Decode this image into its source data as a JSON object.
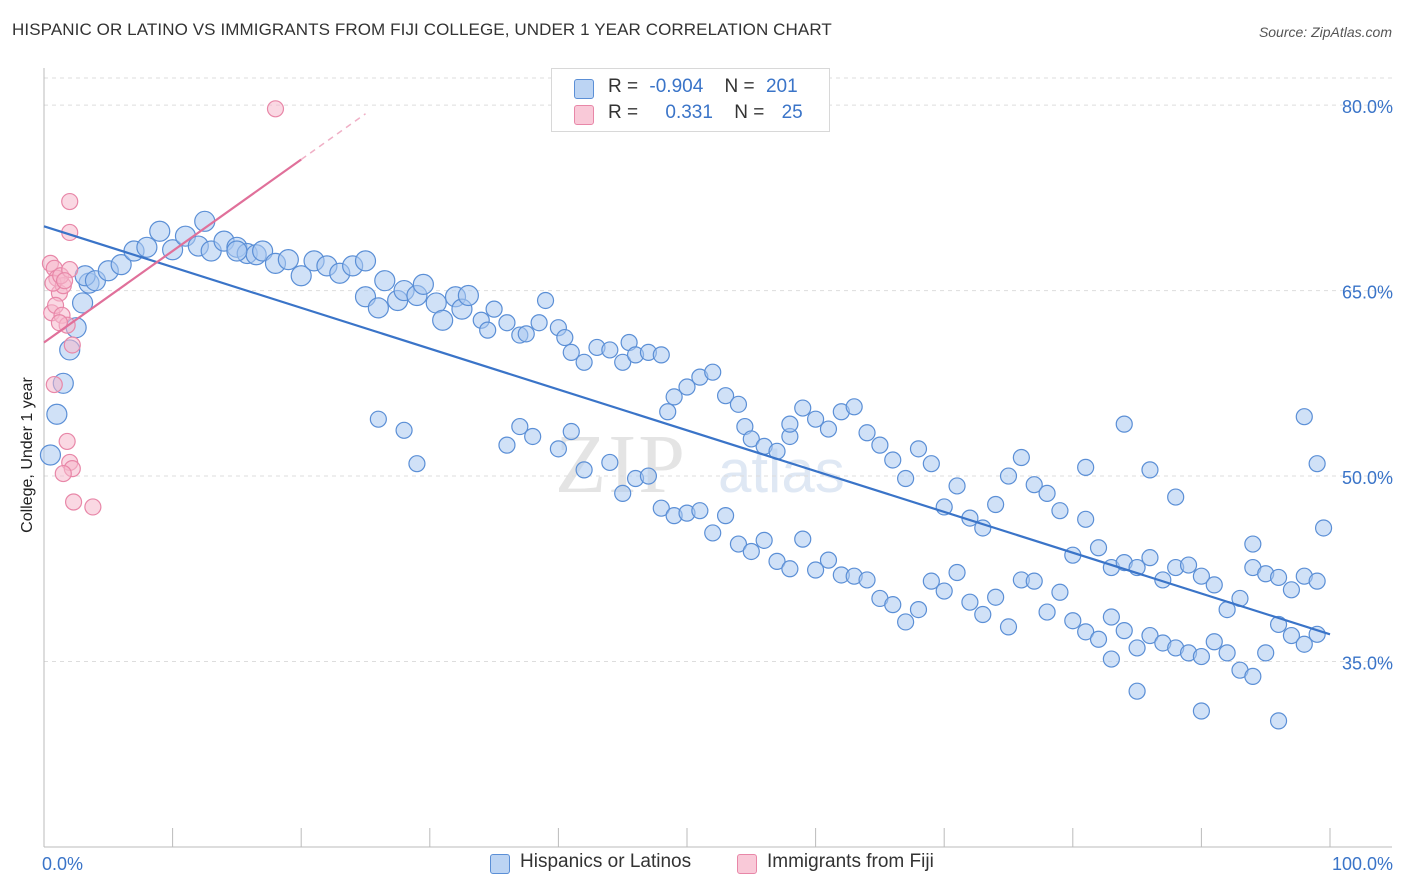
{
  "header": {
    "title": "HISPANIC OR LATINO VS IMMIGRANTS FROM FIJI COLLEGE, UNDER 1 YEAR CORRELATION CHART",
    "source": "Source: ZipAtlas.com"
  },
  "legend": {
    "row1": {
      "r_label": "R =",
      "r_value": "-0.904",
      "n_label": "N =",
      "n_value": "201"
    },
    "row2": {
      "r_label": "R =",
      "r_value": "0.331",
      "n_label": "N =",
      "n_value": "25"
    }
  },
  "watermark": {
    "part1": "ZIP",
    "part2": "atlas"
  },
  "colors": {
    "blue_fill": "#a9c8f0",
    "blue_stroke": "#5b8fd6",
    "blue_line": "#3a74c8",
    "pink_fill": "#f6b8cc",
    "pink_stroke": "#e887a8",
    "pink_line": "#e0709a",
    "axis_label": "#3a74c8",
    "grid": "#dddddd"
  },
  "chart_data": {
    "type": "scatter",
    "title": "HISPANIC OR LATINO VS IMMIGRANTS FROM FIJI COLLEGE, UNDER 1 YEAR CORRELATION CHART",
    "xlabel": "",
    "ylabel": "College, Under 1 year",
    "xlim": [
      0,
      100
    ],
    "ylim": [
      20,
      83
    ],
    "x_tick_labels": [
      "0.0%",
      "100.0%"
    ],
    "y_ticks": [
      35,
      50,
      65,
      80
    ],
    "y_tick_labels": [
      "35.0%",
      "50.0%",
      "65.0%",
      "80.0%"
    ],
    "grid": true,
    "legend_position": "bottom",
    "series": [
      {
        "name": "Hispanics or Latinos",
        "color": "#a9c8f0",
        "r": -0.904,
        "n": 201,
        "trend": {
          "x": [
            0,
            100
          ],
          "y": [
            70.2,
            37.2
          ]
        },
        "points": [
          [
            0.5,
            51.7
          ],
          [
            1,
            55
          ],
          [
            1.5,
            57.5
          ],
          [
            2,
            60.2
          ],
          [
            2.5,
            62
          ],
          [
            3,
            64
          ],
          [
            3.5,
            65.6
          ],
          [
            3.2,
            66.2
          ],
          [
            4,
            65.8
          ],
          [
            5,
            66.6
          ],
          [
            6,
            67.1
          ],
          [
            7,
            68.2
          ],
          [
            8,
            68.5
          ],
          [
            9,
            69.8
          ],
          [
            10,
            68.3
          ],
          [
            11,
            69.4
          ],
          [
            12,
            68.6
          ],
          [
            12.5,
            70.6
          ],
          [
            13,
            68.2
          ],
          [
            14,
            69
          ],
          [
            15,
            68.5
          ],
          [
            15.8,
            68
          ],
          [
            16.5,
            67.9
          ],
          [
            17,
            68.2
          ],
          [
            18,
            67.2
          ],
          [
            19,
            67.5
          ],
          [
            15,
            68.2
          ],
          [
            20,
            66.2
          ],
          [
            21,
            67.4
          ],
          [
            22,
            67
          ],
          [
            23,
            66.4
          ],
          [
            24,
            67
          ],
          [
            25,
            67.4
          ],
          [
            25,
            64.5
          ],
          [
            26,
            63.6
          ],
          [
            26.5,
            65.8
          ],
          [
            27.5,
            64.2
          ],
          [
            28,
            65
          ],
          [
            29,
            64.6
          ],
          [
            29.5,
            65.5
          ],
          [
            30.5,
            64
          ],
          [
            31,
            62.6
          ],
          [
            32,
            64.5
          ],
          [
            32.5,
            63.5
          ],
          [
            33,
            64.6
          ],
          [
            34,
            62.6
          ],
          [
            34.5,
            61.8
          ],
          [
            35,
            63.5
          ],
          [
            36,
            62.4
          ],
          [
            37,
            61.4
          ],
          [
            37.5,
            61.5
          ],
          [
            38.5,
            62.4
          ],
          [
            39,
            64.2
          ],
          [
            40,
            62
          ],
          [
            40.5,
            61.2
          ],
          [
            41,
            60
          ],
          [
            42,
            59.2
          ],
          [
            43,
            60.4
          ],
          [
            44,
            60.2
          ],
          [
            45,
            59.2
          ],
          [
            45.5,
            60.8
          ],
          [
            46,
            59.8
          ],
          [
            47,
            60
          ],
          [
            48,
            59.8
          ],
          [
            48.5,
            55.2
          ],
          [
            49,
            56.4
          ],
          [
            50,
            57.2
          ],
          [
            51,
            58
          ],
          [
            52,
            58.4
          ],
          [
            53,
            56.5
          ],
          [
            54,
            55.8
          ],
          [
            54.5,
            54
          ],
          [
            55,
            53
          ],
          [
            56,
            52.4
          ],
          [
            57,
            52
          ],
          [
            58,
            53.2
          ],
          [
            58,
            54.2
          ],
          [
            59,
            55.5
          ],
          [
            60,
            54.6
          ],
          [
            61,
            53.8
          ],
          [
            62,
            55.2
          ],
          [
            63,
            55.6
          ],
          [
            64,
            53.5
          ],
          [
            65,
            52.5
          ],
          [
            66,
            51.3
          ],
          [
            67,
            49.8
          ],
          [
            68,
            52.2
          ],
          [
            69,
            51
          ],
          [
            70,
            47.5
          ],
          [
            71,
            49.2
          ],
          [
            72,
            46.6
          ],
          [
            73,
            45.8
          ],
          [
            74,
            47.7
          ],
          [
            75,
            50
          ],
          [
            76,
            51.5
          ],
          [
            77,
            49.3
          ],
          [
            78,
            48.6
          ],
          [
            79,
            47.2
          ],
          [
            80,
            43.6
          ],
          [
            81,
            46.5
          ],
          [
            82,
            44.2
          ],
          [
            83,
            42.6
          ],
          [
            84,
            43
          ],
          [
            85,
            42.6
          ],
          [
            86,
            43.4
          ],
          [
            87,
            41.6
          ],
          [
            88,
            42.6
          ],
          [
            89,
            42.8
          ],
          [
            90,
            41.9
          ],
          [
            91,
            41.2
          ],
          [
            92,
            39.2
          ],
          [
            93,
            40.1
          ],
          [
            94,
            42.6
          ],
          [
            95,
            42.1
          ],
          [
            96,
            41.8
          ],
          [
            97,
            40.8
          ],
          [
            98,
            41.9
          ],
          [
            99,
            41.5
          ],
          [
            29,
            51
          ],
          [
            26,
            54.6
          ],
          [
            28,
            53.7
          ],
          [
            36,
            52.5
          ],
          [
            37,
            54
          ],
          [
            38,
            53.2
          ],
          [
            40,
            52.2
          ],
          [
            41,
            53.6
          ],
          [
            42,
            50.5
          ],
          [
            44,
            51.1
          ],
          [
            45,
            48.6
          ],
          [
            46,
            49.8
          ],
          [
            47,
            50
          ],
          [
            48,
            47.4
          ],
          [
            49,
            46.8
          ],
          [
            50,
            47
          ],
          [
            51,
            47.2
          ],
          [
            52,
            45.4
          ],
          [
            53,
            46.8
          ],
          [
            54,
            44.5
          ],
          [
            55,
            43.9
          ],
          [
            56,
            44.8
          ],
          [
            57,
            43.1
          ],
          [
            58,
            42.5
          ],
          [
            59,
            44.9
          ],
          [
            60,
            42.4
          ],
          [
            61,
            43.2
          ],
          [
            62,
            42
          ],
          [
            63,
            41.9
          ],
          [
            64,
            41.6
          ],
          [
            65,
            40.1
          ],
          [
            66,
            39.6
          ],
          [
            67,
            38.2
          ],
          [
            68,
            39.2
          ],
          [
            69,
            41.5
          ],
          [
            70,
            40.7
          ],
          [
            71,
            42.2
          ],
          [
            72,
            39.8
          ],
          [
            73,
            38.8
          ],
          [
            74,
            40.2
          ],
          [
            75,
            37.8
          ],
          [
            76,
            41.6
          ],
          [
            77,
            41.5
          ],
          [
            78,
            39
          ],
          [
            79,
            40.6
          ],
          [
            80,
            38.3
          ],
          [
            81,
            37.4
          ],
          [
            82,
            36.8
          ],
          [
            83,
            38.6
          ],
          [
            84,
            37.5
          ],
          [
            85,
            36.1
          ],
          [
            86,
            37.1
          ],
          [
            87,
            36.5
          ],
          [
            88,
            36.1
          ],
          [
            89,
            35.7
          ],
          [
            90,
            35.4
          ],
          [
            91,
            36.6
          ],
          [
            92,
            35.7
          ],
          [
            93,
            34.3
          ],
          [
            94,
            33.8
          ],
          [
            95,
            35.7
          ],
          [
            96,
            38
          ],
          [
            97,
            37.1
          ],
          [
            98,
            36.4
          ],
          [
            99,
            37.2
          ],
          [
            96,
            30.2
          ],
          [
            90,
            31
          ],
          [
            85,
            32.6
          ],
          [
            83,
            35.2
          ],
          [
            81,
            50.7
          ],
          [
            84,
            54.2
          ],
          [
            86,
            50.5
          ],
          [
            88,
            48.3
          ],
          [
            94,
            44.5
          ],
          [
            98,
            54.8
          ],
          [
            99,
            51
          ],
          [
            99.5,
            45.8
          ]
        ]
      },
      {
        "name": "Immigrants from Fiji",
        "color": "#f6b8cc",
        "r": 0.331,
        "n": 25,
        "trend": {
          "x": [
            0,
            20
          ],
          "y": [
            60.8,
            75.6
          ]
        },
        "trend_dashed": {
          "x": [
            20,
            25
          ],
          "y": [
            75.6,
            79.3
          ]
        },
        "points": [
          [
            0.5,
            67.2
          ],
          [
            0.8,
            66.8
          ],
          [
            1,
            66
          ],
          [
            1.2,
            64.8
          ],
          [
            1.5,
            65.4
          ],
          [
            0.6,
            63.2
          ],
          [
            0.9,
            63.8
          ],
          [
            1.4,
            63
          ],
          [
            1.8,
            62.2
          ],
          [
            0.7,
            65.6
          ],
          [
            1.3,
            66.2
          ],
          [
            2,
            66.7
          ],
          [
            1.6,
            65.8
          ],
          [
            0.8,
            57.4
          ],
          [
            1.8,
            52.8
          ],
          [
            2,
            51.1
          ],
          [
            2.2,
            50.6
          ],
          [
            1.5,
            50.2
          ],
          [
            2.3,
            47.9
          ],
          [
            3.8,
            47.5
          ],
          [
            2,
            69.7
          ],
          [
            2,
            72.2
          ],
          [
            18,
            79.7
          ],
          [
            1.2,
            62.4
          ],
          [
            2.2,
            60.6
          ]
        ]
      }
    ]
  }
}
